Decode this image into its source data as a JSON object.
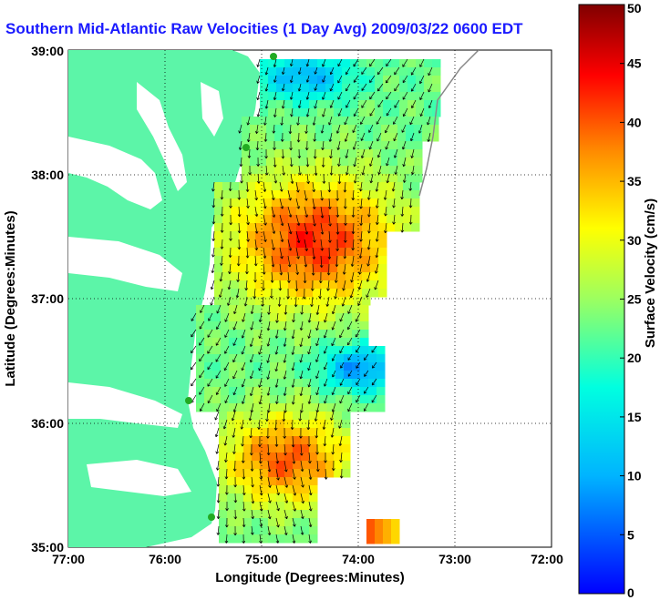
{
  "title": "Southern Mid-Atlantic Raw Velocities (1 Day Avg) 2009/03/22 0600 EDT",
  "chart_data": {
    "type": "heatmap",
    "title": "Southern Mid-Atlantic Raw Velocities (1 Day Avg) 2009/03/22 0600 EDT",
    "xlabel": "Longitude (Degrees:Minutes)",
    "ylabel": "Latitude (Degrees:Minutes)",
    "colorbar_label": "Surface Velocity (cm/s)",
    "x_ticks": [
      "77:00",
      "76:00",
      "75:00",
      "74:00",
      "73:00",
      "72:00"
    ],
    "y_ticks": [
      "39:00",
      "38:00",
      "37:00",
      "36:00",
      "35:00"
    ],
    "colorbar_ticks": [
      "50",
      "45",
      "40",
      "35",
      "30",
      "25",
      "20",
      "15",
      "10",
      "5",
      "0"
    ],
    "xlim": [
      -77,
      -72
    ],
    "ylim": [
      35,
      39
    ],
    "clim": [
      0,
      50
    ],
    "grid": true,
    "colors": {
      "land": "#5cf5a8",
      "ocean": "#ffffff",
      "title": "#1a1aff"
    }
  }
}
